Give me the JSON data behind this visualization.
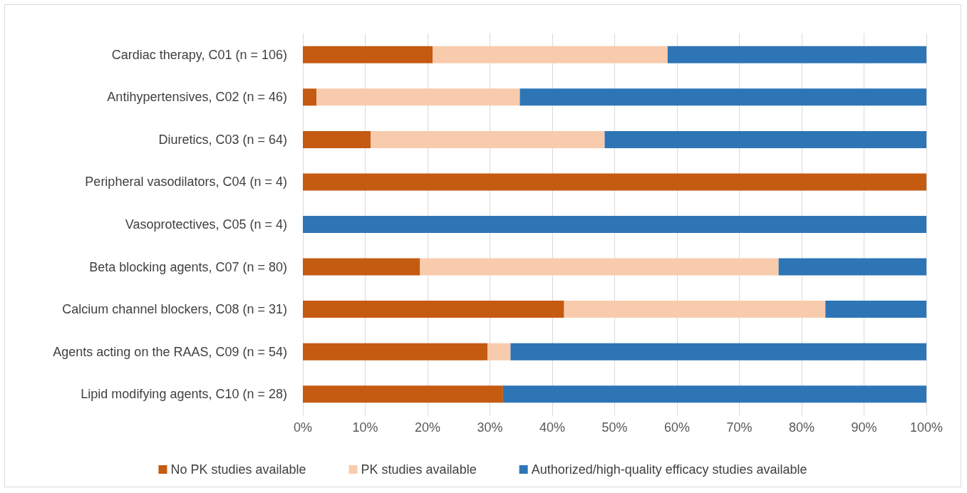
{
  "chart_data": {
    "type": "bar",
    "orientation": "horizontal",
    "stacked": true,
    "categories": [
      "Cardiac therapy, C01 (n = 106)",
      "Antihypertensives, C02 (n = 46)",
      "Diuretics, C03 (n = 64)",
      "Peripheral vasodilators, C04 (n = 4)",
      "Vasoprotectives, C05 (n = 4)",
      "Beta blocking agents, C07 (n = 80)",
      "Calcium channel blockers, C08 (n = 31)",
      "Agents acting on the RAAS, C09 (n = 54)",
      "Lipid modifying agents, C10 (n = 28)"
    ],
    "series": [
      {
        "name": "No PK studies available",
        "color": "#c55a11",
        "values": [
          20.8,
          2.2,
          10.9,
          100,
          0,
          18.8,
          41.9,
          29.6,
          32.1
        ]
      },
      {
        "name": "PK studies available",
        "color": "#f8cbad",
        "values": [
          37.7,
          32.6,
          37.5,
          0,
          0,
          57.5,
          41.9,
          3.7,
          0
        ]
      },
      {
        "name": "Authorized/high-quality efficacy studies available",
        "color": "#2e75b6",
        "values": [
          41.5,
          65.2,
          51.6,
          0,
          100,
          23.7,
          16.2,
          66.7,
          67.9
        ]
      }
    ],
    "xlim": [
      0,
      100
    ],
    "xticks": [
      {
        "value": 0,
        "label": "0%"
      },
      {
        "value": 10,
        "label": "10%"
      },
      {
        "value": 20,
        "label": "20%"
      },
      {
        "value": 30,
        "label": "30%"
      },
      {
        "value": 40,
        "label": "40%"
      },
      {
        "value": 50,
        "label": "50%"
      },
      {
        "value": 60,
        "label": "60%"
      },
      {
        "value": 70,
        "label": "70%"
      },
      {
        "value": 80,
        "label": "80%"
      },
      {
        "value": 90,
        "label": "90%"
      },
      {
        "value": 100,
        "label": "100%"
      }
    ],
    "grid": "x",
    "legend": "bottom"
  }
}
